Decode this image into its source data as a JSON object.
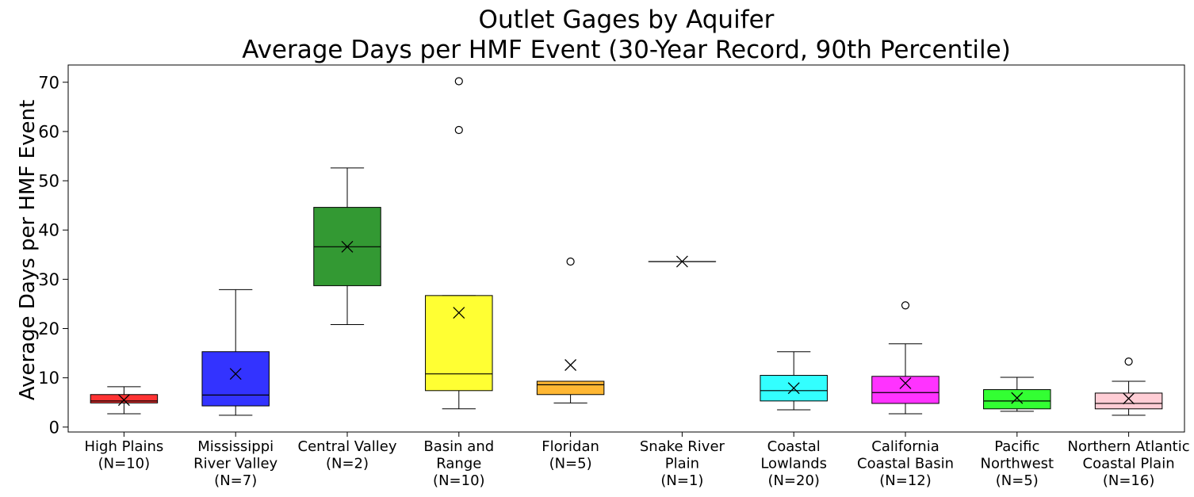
{
  "chart_data": {
    "type": "box",
    "title": [
      "Outlet Gages by Aquifer",
      "Average Days per HMF Event (30-Year Record, 90th Percentile)"
    ],
    "xlabel": "",
    "ylabel": "Average Days per HMF Event",
    "ylim": [
      -1,
      73.5
    ],
    "yticks": [
      0,
      10,
      20,
      30,
      40,
      50,
      60,
      70
    ],
    "grid": false,
    "mean_marker": "x",
    "categories": [
      {
        "label": [
          "High Plains",
          "(N=10)"
        ],
        "color": "#ff0000",
        "q1": 4.9,
        "median": 5.3,
        "q3": 6.6,
        "whisker_low": 2.7,
        "whisker_high": 8.2,
        "mean": 5.5,
        "outliers": []
      },
      {
        "label": [
          "Mississippi",
          "River Valley",
          "(N=7)"
        ],
        "color": "#0000ff",
        "q1": 4.3,
        "median": 6.5,
        "q3": 15.3,
        "whisker_low": 2.4,
        "whisker_high": 27.9,
        "mean": 10.8,
        "outliers": []
      },
      {
        "label": [
          "Central Valley",
          "(N=2)"
        ],
        "color": "#008000",
        "q1": 28.7,
        "median": 36.6,
        "q3": 44.6,
        "whisker_low": 20.8,
        "whisker_high": 52.6,
        "mean": 36.6,
        "outliers": []
      },
      {
        "label": [
          "Basin and",
          "Range",
          "(N=10)"
        ],
        "color": "#ffff00",
        "q1": 7.4,
        "median": 10.8,
        "q3": 26.7,
        "whisker_low": 3.7,
        "whisker_high": 26.7,
        "mean": 23.2,
        "outliers": [
          60.3,
          70.2
        ]
      },
      {
        "label": [
          "Floridan",
          "(N=5)"
        ],
        "color": "#ffa500",
        "q1": 6.6,
        "median": 8.6,
        "q3": 9.3,
        "whisker_low": 4.9,
        "whisker_high": 9.3,
        "mean": 12.6,
        "outliers": [
          33.6
        ]
      },
      {
        "label": [
          "Snake River",
          "Plain",
          "(N=1)"
        ],
        "color": "#808080",
        "q1": 33.6,
        "median": 33.6,
        "q3": 33.6,
        "whisker_low": 33.6,
        "whisker_high": 33.6,
        "mean": 33.6,
        "outliers": []
      },
      {
        "label": [
          "Coastal",
          "Lowlands",
          "(N=20)"
        ],
        "color": "#00ffff",
        "q1": 5.3,
        "median": 7.4,
        "q3": 10.5,
        "whisker_low": 3.5,
        "whisker_high": 15.3,
        "mean": 7.9,
        "outliers": []
      },
      {
        "label": [
          "California",
          "Coastal Basin",
          "(N=12)"
        ],
        "color": "#ff00ff",
        "q1": 4.8,
        "median": 7.0,
        "q3": 10.3,
        "whisker_low": 2.7,
        "whisker_high": 16.9,
        "mean": 8.9,
        "outliers": [
          24.7
        ]
      },
      {
        "label": [
          "Pacific",
          "Northwest",
          "(N=5)"
        ],
        "color": "#00ff00",
        "q1": 3.7,
        "median": 5.3,
        "q3": 7.6,
        "whisker_low": 3.2,
        "whisker_high": 10.1,
        "mean": 5.9,
        "outliers": []
      },
      {
        "label": [
          "Northern Atlantic",
          "Coastal Plain",
          "(N=16)"
        ],
        "color": "#ffc0cb",
        "q1": 3.7,
        "median": 4.8,
        "q3": 6.9,
        "whisker_low": 2.4,
        "whisker_high": 9.3,
        "mean": 5.8,
        "outliers": [
          13.3
        ]
      }
    ]
  }
}
